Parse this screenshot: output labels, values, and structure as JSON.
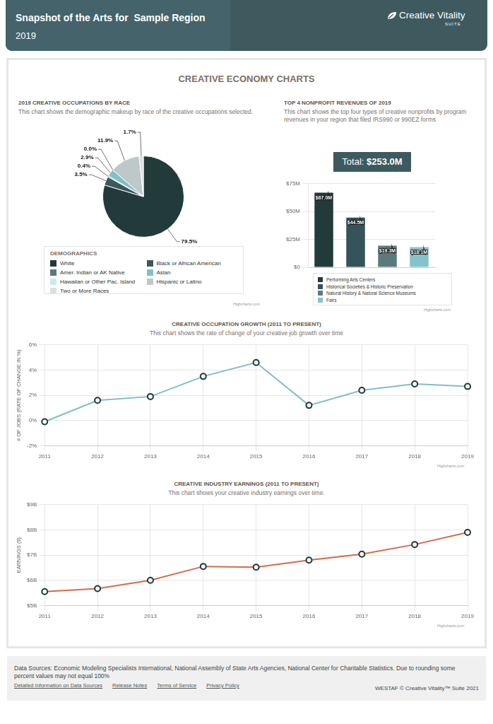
{
  "header": {
    "title": "Snapshot of the Arts for  Sample Region",
    "year": "2019",
    "logo": "Creative Vitality",
    "logo_sub": "SUITE"
  },
  "section_title": "CREATIVE ECONOMY CHARTS",
  "chart_data": [
    {
      "type": "pie",
      "title": "2019 CREATIVE OCCUPATIONS BY RACE",
      "subtitle": "This chart shows the demographic makeup by race of the creative occupations selected.",
      "legend_title": "DEMOGRAPHICS",
      "categories": [
        "White",
        "Black or African American",
        "Amer. Indian or AK Native",
        "Asian",
        "Hawaiian or Other Pac. Island",
        "Hispanic or Latino",
        "Two or More Races"
      ],
      "values": [
        79.5,
        3.5,
        0.4,
        2.9,
        0.0,
        11.9,
        1.7
      ],
      "value_labels": [
        "79.5%",
        "3.5%",
        "0.4%",
        "2.9%",
        "0.0%",
        "11.9%",
        "1.7%"
      ],
      "data_labels": true,
      "colors": [
        "#233a3a",
        "#3d585c",
        "#5b7a7e",
        "#7fc2c6",
        "#c9ecee",
        "#bfc8c8",
        "#dde0e1"
      ],
      "legend": "bottom",
      "credit": "Highcharts.com"
    },
    {
      "type": "bar",
      "title": "TOP 4 NONPROFIT REVENUES OF 2019",
      "subtitle": "This chart shows the top four types of creative nonprofits by program revenues in your region that filed IRS990 or 990EZ forms",
      "total_label": "Total:",
      "total": "$253.0M",
      "categories": [
        "Performing Arts Centers",
        "Historical Societies & Historic Preservation",
        "Natural History & Natural Science Museums",
        "Fairs"
      ],
      "values": [
        67.0,
        44.5,
        19.3,
        18.1
      ],
      "value_labels": [
        "$67.0M",
        "$44.5M",
        "$19.3M",
        "$18.1M"
      ],
      "data_labels": true,
      "colors": [
        "#233a3a",
        "#34535a",
        "#5b7a7e",
        "#85c3c8"
      ],
      "ylim": [
        0,
        75
      ],
      "yticks": [
        {
          "value": 0,
          "label": "$0"
        },
        {
          "value": 25,
          "label": "$25M"
        },
        {
          "value": 50,
          "label": "$50M"
        },
        {
          "value": 75,
          "label": "$75M"
        }
      ],
      "grid": true,
      "legend": "bottom",
      "tick_labels": "y",
      "credit": "Highcharts.com"
    },
    {
      "type": "line",
      "title": "CREATIVE OCCUPATION GROWTH (2011 TO PRESENT)",
      "subtitle": "This chart shows the rate of change of your creative job growth over time",
      "ylabel": "# OF JOBS (RATE OF CHANGE IN %)",
      "categories": [
        "2011",
        "2012",
        "2013",
        "2014",
        "2015",
        "2016",
        "2017",
        "2018",
        "2019"
      ],
      "values": [
        -0.1,
        1.6,
        1.9,
        3.5,
        4.6,
        1.2,
        2.4,
        2.9,
        2.7
      ],
      "color": "#7fbfc2",
      "marker": "circle",
      "ylim": [
        -2,
        6
      ],
      "yticks": [
        {
          "value": -2,
          "label": "-2%"
        },
        {
          "value": 0,
          "label": "0%"
        },
        {
          "value": 2,
          "label": "2%"
        },
        {
          "value": 4,
          "label": "4%"
        },
        {
          "value": 6,
          "label": "6%"
        }
      ],
      "grid": true,
      "credit": "Highcharts.com"
    },
    {
      "type": "line",
      "title": "CREATIVE INDUSTRY EARNINGS (2011 TO PRESENT)",
      "subtitle": "This chart shows your creative industry earnings over time.",
      "ylabel": "EARNINGS ($)",
      "categories": [
        "2011",
        "2012",
        "2013",
        "2014",
        "2015",
        "2016",
        "2017",
        "2018",
        "2019"
      ],
      "values": [
        5.55,
        5.67,
        6.0,
        6.55,
        6.52,
        6.8,
        7.04,
        7.42,
        7.9
      ],
      "color": "#d9694a",
      "marker": "circle",
      "ylim": [
        5,
        9
      ],
      "yticks": [
        {
          "value": 5,
          "label": "$5B"
        },
        {
          "value": 6,
          "label": "$6B"
        },
        {
          "value": 7,
          "label": "$7B"
        },
        {
          "value": 8,
          "label": "$8B"
        },
        {
          "value": 9,
          "label": "$9B"
        }
      ],
      "grid": true,
      "credit": "Highcharts.com"
    }
  ],
  "footer": {
    "text": "Data Sources: Economic Modeling Specialists International, National Assembly of State Arts Agencies, National Center for Charitable Statistics. Due to rounding some percent values may not equal 100%",
    "links": [
      "Detailed Information on Data Sources",
      "Release Notes",
      "Terms of Service",
      "Privacy Policy"
    ],
    "copyright": "WESTAF © Creative Vitality™ Suite 2021"
  }
}
